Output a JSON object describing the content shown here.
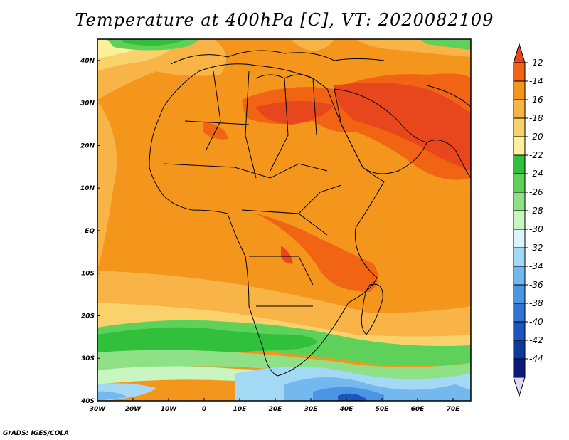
{
  "title": "Temperature at 400hPa [C], VT: 2020082109",
  "credit": "GrADS: IGES/COLA",
  "map": {
    "lon_ticks": [
      "30W",
      "20W",
      "10W",
      "0",
      "10E",
      "20E",
      "30E",
      "40E",
      "50E",
      "60E",
      "70E"
    ],
    "lat_ticks": [
      "40N",
      "30N",
      "20N",
      "10N",
      "EQ",
      "10S",
      "20S",
      "30S",
      "40S"
    ],
    "lon_range": [
      -30,
      75
    ],
    "lat_range": [
      -40,
      45
    ]
  },
  "colorbar": {
    "labels": [
      "-12",
      "-14",
      "-16",
      "-18",
      "-20",
      "-22",
      "-24",
      "-26",
      "-28",
      "-30",
      "-32",
      "-34",
      "-36",
      "-38",
      "-40",
      "-42",
      "-44"
    ],
    "colors": [
      "#e8461c",
      "#f06414",
      "#f5961c",
      "#f8b447",
      "#fad26b",
      "#fdf09b",
      "#31c03b",
      "#5ed15a",
      "#8ee186",
      "#c8f5c0",
      "#dbf5fb",
      "#a3d9f5",
      "#73b8ee",
      "#4b95e3",
      "#2f73d4",
      "#1c55bd",
      "#0d3b9a",
      "#0b1a78",
      "#e0d8f5"
    ]
  },
  "regions": {
    "colors": {
      "hot": "#f06414",
      "hottest": "#e8461c",
      "warm": "#f5961c",
      "mild": "#f8b447",
      "cool": "#fad26b",
      "pale": "#fdf09b",
      "green": "#31c03b",
      "lightgreen": "#5ed15a",
      "palegreen": "#8ee186",
      "cyan": "#c8f5c0",
      "lightblue": "#a3d9f5",
      "blue": "#73b8ee",
      "deepblue": "#4b95e3",
      "navy": "#1c55bd"
    }
  }
}
